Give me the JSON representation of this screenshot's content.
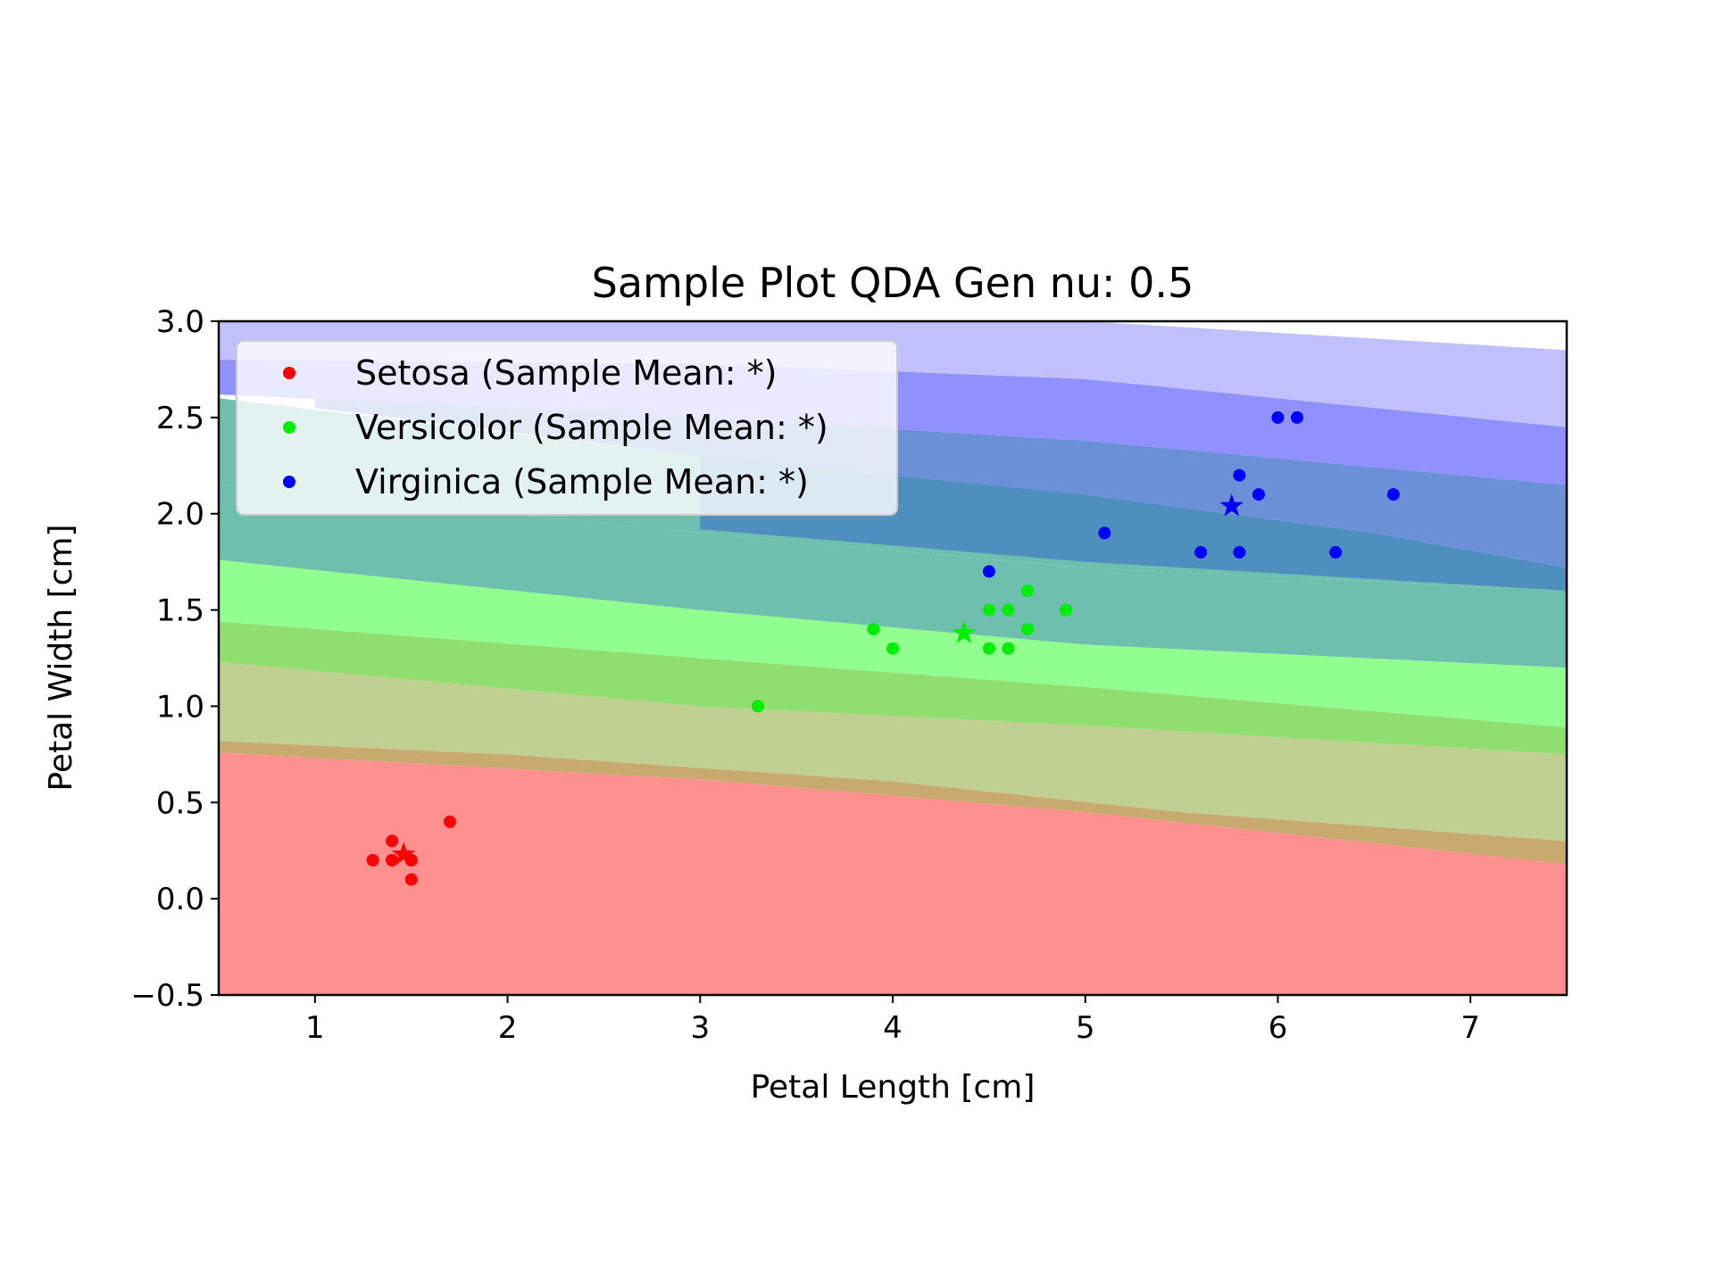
{
  "chart_data": {
    "type": "scatter",
    "title": "Sample Plot QDA Gen nu: 0.5",
    "xlabel": "Petal Length [cm]",
    "ylabel": "Petal Width [cm]",
    "xlim": [
      0.5,
      7.5
    ],
    "ylim": [
      -0.5,
      3.0
    ],
    "xticks": [
      1,
      2,
      3,
      4,
      5,
      6,
      7
    ],
    "yticks": [
      -0.5,
      0.0,
      0.5,
      1.0,
      1.5,
      2.0,
      2.5,
      3.0
    ],
    "xtick_labels": [
      "1",
      "2",
      "3",
      "4",
      "5",
      "6",
      "7"
    ],
    "ytick_labels": [
      "−0.5",
      "0.0",
      "0.5",
      "1.0",
      "1.5",
      "2.0",
      "2.5",
      "3.0"
    ],
    "grid": false,
    "legend_position": "top-left",
    "series": [
      {
        "name": "Setosa (Sample Mean: *)",
        "color": "#ff0000",
        "points": [
          [
            1.3,
            0.2
          ],
          [
            1.4,
            0.3
          ],
          [
            1.4,
            0.2
          ],
          [
            1.4,
            0.2
          ],
          [
            1.5,
            0.2
          ],
          [
            1.5,
            0.2
          ],
          [
            1.5,
            0.1
          ],
          [
            1.7,
            0.4
          ]
        ],
        "mean": [
          1.46,
          0.23
        ]
      },
      {
        "name": "Versicolor (Sample Mean: *)",
        "color": "#00ee00",
        "points": [
          [
            3.3,
            1.0
          ],
          [
            3.9,
            1.4
          ],
          [
            4.0,
            1.3
          ],
          [
            4.5,
            1.5
          ],
          [
            4.5,
            1.3
          ],
          [
            4.6,
            1.5
          ],
          [
            4.6,
            1.3
          ],
          [
            4.7,
            1.6
          ],
          [
            4.7,
            1.4
          ],
          [
            4.9,
            1.5
          ]
        ],
        "mean": [
          4.37,
          1.38
        ]
      },
      {
        "name": "Virginica (Sample Mean: *)",
        "color": "#0000ff",
        "points": [
          [
            4.5,
            1.7
          ],
          [
            5.1,
            1.9
          ],
          [
            5.6,
            1.8
          ],
          [
            5.8,
            1.8
          ],
          [
            5.8,
            2.2
          ],
          [
            5.9,
            2.1
          ],
          [
            6.0,
            2.5
          ],
          [
            6.1,
            2.5
          ],
          [
            6.3,
            1.8
          ],
          [
            6.6,
            2.1
          ]
        ],
        "mean": [
          5.76,
          2.04
        ]
      }
    ],
    "regions": [
      {
        "class": "Setosa",
        "color": "#ff9090",
        "upper_edge": [
          [
            0.5,
            0.76
          ],
          [
            3.0,
            0.62
          ],
          [
            5.0,
            0.45
          ],
          [
            7.5,
            0.18
          ]
        ],
        "fill_to": "bottom"
      },
      {
        "class": "Setosa",
        "color": "#ffc0c0",
        "upper_edge": [
          [
            0.5,
            0.76
          ],
          [
            3.0,
            0.62
          ],
          [
            5.0,
            0.45
          ],
          [
            7.5,
            0.2
          ]
        ],
        "lower_edge": [
          [
            0.5,
            0.76
          ],
          [
            3.0,
            0.62
          ],
          [
            5.0,
            0.45
          ],
          [
            7.5,
            0.18
          ]
        ]
      },
      {
        "class": "Overlap",
        "color": "#c8aa6e",
        "upper_edge": [
          [
            0.5,
            0.82
          ],
          [
            2.0,
            0.75
          ],
          [
            4.0,
            0.61
          ],
          [
            5.5,
            0.45
          ],
          [
            7.5,
            0.3
          ]
        ],
        "lower_edge": [
          [
            0.5,
            0.76
          ],
          [
            3.0,
            0.62
          ],
          [
            5.0,
            0.45
          ],
          [
            7.5,
            0.18
          ]
        ]
      },
      {
        "class": "Versicolor",
        "color": "#c0d090",
        "upper_edge": [
          [
            0.5,
            1.23
          ],
          [
            3.0,
            1.0
          ],
          [
            5.0,
            0.9
          ],
          [
            7.5,
            0.75
          ]
        ],
        "lower_edge": [
          [
            0.5,
            0.82
          ],
          [
            2.0,
            0.75
          ],
          [
            4.0,
            0.61
          ],
          [
            5.5,
            0.45
          ],
          [
            7.5,
            0.3
          ]
        ]
      },
      {
        "class": "Versicolor",
        "color": "#90dd70",
        "upper_edge": [
          [
            0.5,
            1.44
          ],
          [
            3.0,
            1.25
          ],
          [
            5.0,
            1.1
          ],
          [
            7.5,
            0.89
          ]
        ],
        "lower_edge": [
          [
            0.5,
            1.23
          ],
          [
            3.0,
            1.0
          ],
          [
            5.0,
            0.9
          ],
          [
            7.5,
            0.75
          ]
        ]
      },
      {
        "class": "Versicolor",
        "color": "#90ff90",
        "upper_edge": [
          [
            0.5,
            1.76
          ],
          [
            3.0,
            1.5
          ],
          [
            5.0,
            1.32
          ],
          [
            7.5,
            1.2
          ]
        ],
        "lower_edge": [
          [
            0.5,
            1.44
          ],
          [
            3.0,
            1.25
          ],
          [
            5.0,
            1.1
          ],
          [
            7.5,
            0.89
          ]
        ]
      },
      {
        "class": "Overlap",
        "color": "#6ebfad",
        "upper_edge": [
          [
            0.5,
            2.15
          ],
          [
            3.0,
            1.9
          ],
          [
            5.0,
            1.72
          ],
          [
            7.5,
            1.6
          ]
        ],
        "lower_edge": [
          [
            0.5,
            1.76
          ],
          [
            3.0,
            1.5
          ],
          [
            5.0,
            1.32
          ],
          [
            7.5,
            1.2
          ]
        ]
      },
      {
        "class": "Overlap",
        "color": "#6ebfad",
        "upper_edge": [
          [
            0.5,
            2.6
          ],
          [
            3.0,
            2.3
          ],
          [
            5.0,
            2.1
          ],
          [
            7.5,
            1.6
          ]
        ],
        "lower_edge": [
          [
            0.5,
            2.15
          ],
          [
            3.0,
            1.9
          ],
          [
            5.0,
            1.72
          ],
          [
            7.5,
            1.6
          ]
        ]
      },
      {
        "class": "Virginica",
        "color": "#4f8fbf",
        "upper_edge": [
          [
            3.0,
            2.3
          ],
          [
            5.0,
            2.1
          ],
          [
            6.5,
            1.9
          ],
          [
            7.5,
            1.72
          ]
        ],
        "lower_edge": [
          [
            3.0,
            1.92
          ],
          [
            5.0,
            1.75
          ],
          [
            7.5,
            1.6
          ]
        ]
      },
      {
        "class": "Virginica",
        "color": "#6c90d8",
        "upper_edge": [
          [
            1.0,
            2.62
          ],
          [
            3.0,
            2.5
          ],
          [
            5.0,
            2.38
          ],
          [
            7.5,
            2.15
          ]
        ],
        "lower_edge": [
          [
            1.0,
            2.55
          ],
          [
            3.0,
            2.3
          ],
          [
            5.0,
            2.1
          ],
          [
            6.5,
            1.9
          ],
          [
            7.5,
            1.72
          ]
        ]
      },
      {
        "class": "Virginica",
        "color": "#9090ff",
        "upper_edge": [
          [
            0.5,
            2.8
          ],
          [
            3.0,
            2.78
          ],
          [
            5.0,
            2.7
          ],
          [
            7.5,
            2.45
          ]
        ],
        "lower_edge": [
          [
            0.5,
            2.62
          ],
          [
            3.0,
            2.5
          ],
          [
            5.0,
            2.38
          ],
          [
            7.5,
            2.15
          ]
        ]
      },
      {
        "class": "Virginica",
        "color": "#c0c0ff",
        "upper_edge": [
          [
            0.5,
            3.0
          ],
          [
            5.0,
            3.0
          ],
          [
            7.5,
            2.85
          ]
        ],
        "lower_edge": [
          [
            0.5,
            2.8
          ],
          [
            3.0,
            2.78
          ],
          [
            5.0,
            2.7
          ],
          [
            7.5,
            2.45
          ]
        ]
      }
    ]
  }
}
